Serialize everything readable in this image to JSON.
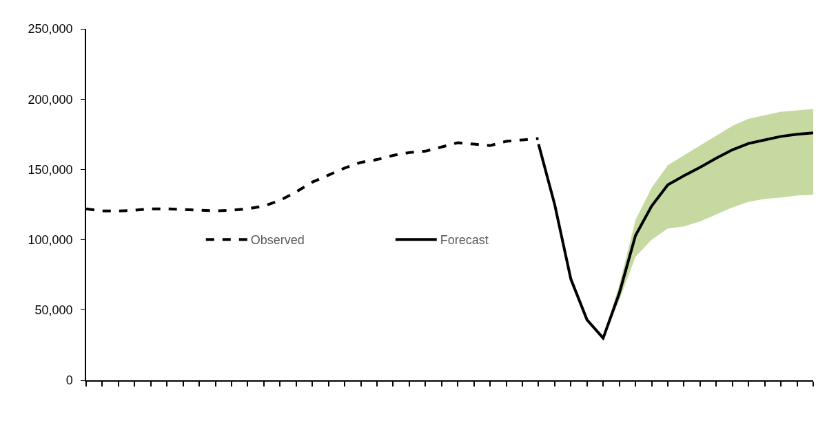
{
  "chart_data": {
    "type": "line",
    "categories": [
      null,
      null,
      null,
      null,
      null,
      null,
      null,
      null,
      null,
      null,
      null,
      null,
      null,
      null,
      null,
      null,
      null,
      null,
      null,
      null,
      null,
      null,
      null,
      null,
      null,
      null,
      null,
      null,
      null,
      null,
      null,
      null,
      null,
      null,
      null,
      null,
      null,
      null,
      null,
      null,
      null,
      null,
      null,
      null,
      null,
      null
    ],
    "series": [
      {
        "name": "Observed",
        "color": "#000000",
        "line_style": "dashed",
        "values": [
          122000,
          120500,
          120500,
          121000,
          122000,
          122000,
          121500,
          121000,
          120500,
          121000,
          122000,
          124000,
          128000,
          134000,
          141000,
          146000,
          151000,
          155000,
          157000,
          160000,
          162000,
          163000,
          166000,
          169000,
          168000,
          167000,
          170000,
          171000,
          172000,
          null,
          null,
          null,
          null,
          null,
          null,
          null,
          null,
          null,
          null,
          null,
          null,
          null,
          null,
          null,
          null,
          null
        ]
      },
      {
        "name": "Forecast",
        "color": "#000000",
        "line_style": "solid",
        "values": [
          null,
          null,
          null,
          null,
          null,
          null,
          null,
          null,
          null,
          null,
          null,
          null,
          null,
          null,
          null,
          null,
          null,
          null,
          null,
          null,
          null,
          null,
          null,
          null,
          null,
          null,
          null,
          null,
          168000,
          125000,
          72000,
          43000,
          30000,
          62000,
          103000,
          124000,
          139000,
          145500,
          151500,
          158000,
          164000,
          168500,
          171000,
          173500,
          175000,
          176000
        ],
        "lower": [
          null,
          null,
          null,
          null,
          null,
          null,
          null,
          null,
          null,
          null,
          null,
          null,
          null,
          null,
          null,
          null,
          null,
          null,
          null,
          null,
          null,
          null,
          null,
          null,
          null,
          null,
          null,
          null,
          null,
          null,
          null,
          null,
          30000,
          57000,
          88000,
          100000,
          108000,
          109500,
          113000,
          118000,
          123000,
          127000,
          129000,
          130000,
          131500,
          132000
        ],
        "upper": [
          null,
          null,
          null,
          null,
          null,
          null,
          null,
          null,
          null,
          null,
          null,
          null,
          null,
          null,
          null,
          null,
          null,
          null,
          null,
          null,
          null,
          null,
          null,
          null,
          null,
          null,
          null,
          null,
          null,
          null,
          null,
          null,
          30000,
          68000,
          114000,
          137000,
          153000,
          160000,
          167000,
          174000,
          181000,
          186000,
          188500,
          191000,
          192000,
          193000
        ]
      }
    ],
    "ylim": [
      0,
      250000
    ],
    "yticks": [
      {
        "value": 0,
        "label": "0"
      },
      {
        "value": 50000,
        "label": "50,000"
      },
      {
        "value": 100000,
        "label": "100,000"
      },
      {
        "value": 150000,
        "label": "150,000"
      },
      {
        "value": 200000,
        "label": "200,000"
      },
      {
        "value": 250000,
        "label": "250,000"
      }
    ],
    "legend": "left",
    "marker": "none"
  }
}
